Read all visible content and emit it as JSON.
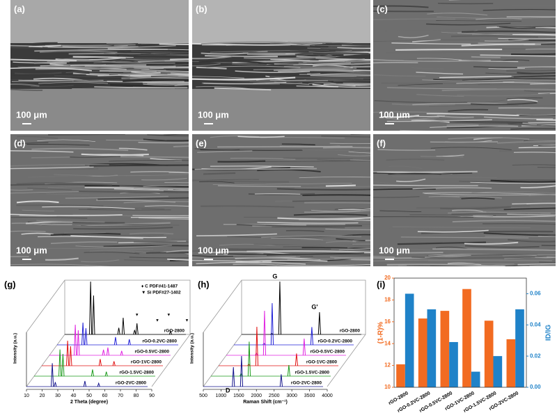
{
  "images": [
    {
      "label": "(a)",
      "scale": "100 μm"
    },
    {
      "label": "(b)",
      "scale": "100 μm"
    },
    {
      "label": "(c)",
      "scale": "100 μm"
    },
    {
      "label": "(d)",
      "scale": "100 μm"
    },
    {
      "label": "(e)",
      "scale": "100 μm"
    },
    {
      "label": "(f)",
      "scale": "100 μm"
    }
  ],
  "chart_data": [
    {
      "type": "waterfall",
      "panel": "(g)",
      "xlabel": "2 Theta (degree)",
      "ylabel": "Intensity (a.u.)",
      "xlim": [
        10,
        90
      ],
      "xticks": [
        10,
        20,
        30,
        40,
        50,
        60,
        70,
        80,
        90
      ],
      "legend": [
        "♦ C  PDF#41-1487",
        "▼ Si  PDF#27-1402"
      ],
      "markers": [
        {
          "symbol": "▼",
          "x": 56.1
        },
        {
          "symbol": "▼",
          "x": 69.1
        },
        {
          "symbol": "▼",
          "x": 76.4
        },
        {
          "symbol": "▼",
          "x": 88
        }
      ],
      "series": [
        {
          "name": "rGO-2800",
          "color": "#000000",
          "x": [
            26.5,
            28.4,
            44.5,
            47.3,
            54.6,
            56.1,
            77.5
          ],
          "values": [
            95,
            70,
            12,
            30,
            8,
            20,
            6
          ]
        },
        {
          "name": "rGO-0.2VC-2800",
          "color": "#1f1fd6",
          "x": [
            26.5,
            28.4,
            47.3,
            56.1
          ],
          "values": [
            40,
            30,
            14,
            10
          ]
        },
        {
          "name": "rGO-0.5VC-2800",
          "color": "#e020e0",
          "x": [
            26.5,
            28.4,
            44.5,
            47.3,
            56.1
          ],
          "values": [
            55,
            45,
            10,
            14,
            8
          ]
        },
        {
          "name": "rGO-1VC-2800",
          "color": "#e01010",
          "x": [
            26.5,
            28.4,
            47.3,
            56.1
          ],
          "values": [
            45,
            35,
            12,
            8
          ]
        },
        {
          "name": "rGO-1.5VC-2800",
          "color": "#1a9a1a",
          "x": [
            26.5,
            28.4,
            47.3,
            56.1
          ],
          "values": [
            48,
            40,
            12,
            8
          ]
        },
        {
          "name": "rGO-2VC-2800",
          "color": "#14148c",
          "x": [
            26.5,
            28.4,
            47.3,
            56.1
          ],
          "values": [
            42,
            8,
            10,
            6
          ]
        }
      ]
    },
    {
      "type": "waterfall",
      "panel": "(h)",
      "xlabel": "Raman Shift (cm⁻¹)",
      "ylabel": "Intensity (a.u.)",
      "xlim": [
        500,
        4000
      ],
      "xticks": [
        500,
        1000,
        1500,
        2000,
        2500,
        3000,
        3500,
        4000
      ],
      "annotations": [
        {
          "text": "D",
          "x": 1350,
          "layer": 5
        },
        {
          "text": "G",
          "x": 1580,
          "layer": 0
        },
        {
          "text": "G'",
          "x": 2700,
          "layer": 0
        }
      ],
      "series": [
        {
          "name": "rGO-2800",
          "color": "#000000",
          "x": [
            1350,
            1580,
            2700
          ],
          "values": [
            2,
            95,
            40
          ]
        },
        {
          "name": "rGO-0.2VC-2800",
          "color": "#1f1fd6",
          "x": [
            1350,
            1580,
            2700
          ],
          "values": [
            3,
            75,
            32
          ]
        },
        {
          "name": "rGO-0.5VC-2800",
          "color": "#e020e0",
          "x": [
            1350,
            1580,
            2700
          ],
          "values": [
            4,
            80,
            30
          ]
        },
        {
          "name": "rGO-1VC-2800",
          "color": "#e01010",
          "x": [
            1350,
            1580,
            2700
          ],
          "values": [
            3,
            70,
            22
          ]
        },
        {
          "name": "rGO-1.5VC-2800",
          "color": "#1a9a1a",
          "x": [
            1350,
            1580,
            2700
          ],
          "values": [
            5,
            62,
            20
          ]
        },
        {
          "name": "rGO-2VC-2800",
          "color": "#14148c",
          "x": [
            1350,
            1580,
            2700
          ],
          "values": [
            35,
            55,
            22
          ]
        }
      ]
    },
    {
      "type": "bar",
      "panel": "(i)",
      "categories": [
        "rGO-2800",
        "rGO-0.2VC-2800",
        "rGO-0.5VC-2800",
        "rGO-1VC-2800",
        "rGO-1.5VC-2800",
        "rGO-2VC-2800"
      ],
      "ylabel": "(1-R)%",
      "y2label": "ID/IG",
      "ylim": [
        10,
        20
      ],
      "yticks": [
        10,
        12,
        14,
        16,
        18,
        20
      ],
      "y2lim": [
        0,
        0.07
      ],
      "y2ticks": [
        {
          "value": 0,
          "label": "0.00"
        },
        {
          "value": 0.02,
          "label": "0.02"
        },
        {
          "value": 0.04,
          "label": "0.04"
        },
        {
          "value": 0.06,
          "label": "0.06"
        }
      ],
      "series": [
        {
          "name": "(1-R)%",
          "color": "#f26b21",
          "values": [
            12.1,
            16.3,
            17.0,
            19.0,
            16.1,
            14.4
          ]
        },
        {
          "name": "ID/IG",
          "color": "#1f82c8",
          "axis": "y2",
          "values": [
            0.06,
            0.05,
            0.029,
            0.01,
            0.02,
            0.05
          ]
        }
      ]
    }
  ]
}
